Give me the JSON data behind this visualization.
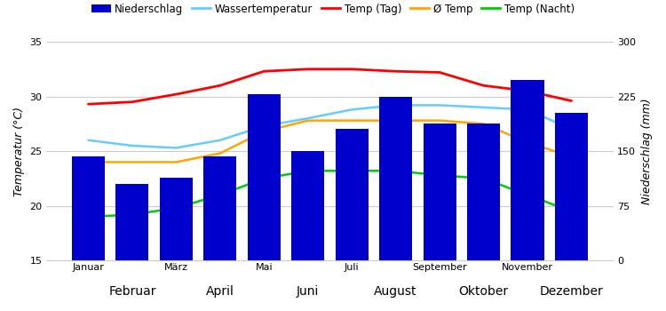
{
  "months": [
    "Januar",
    "Februar",
    "März",
    "April",
    "Mai",
    "Juni",
    "Juli",
    "August",
    "September",
    "Oktober",
    "November",
    "Dezember"
  ],
  "niederschlag_mm": [
    143,
    105,
    113,
    143,
    228,
    150,
    180,
    225,
    188,
    188,
    248,
    203
  ],
  "wassertemperatur": [
    26.0,
    25.5,
    25.3,
    26.0,
    27.3,
    28.0,
    28.8,
    29.2,
    29.2,
    29.0,
    28.8,
    27.0
  ],
  "temp_tag": [
    29.3,
    29.5,
    30.2,
    31.0,
    32.3,
    32.5,
    32.5,
    32.3,
    32.2,
    31.0,
    30.5,
    29.6
  ],
  "avg_temp": [
    24.0,
    24.0,
    24.0,
    24.8,
    26.8,
    27.8,
    27.8,
    27.8,
    27.8,
    27.5,
    25.8,
    24.5
  ],
  "temp_nacht": [
    19.0,
    19.2,
    19.8,
    21.0,
    22.5,
    23.2,
    23.2,
    23.2,
    22.8,
    22.5,
    21.0,
    19.5
  ],
  "bar_color": "#0000CC",
  "wasser_color": "#66CCFF",
  "tag_color": "#FF0000",
  "avg_color": "#FFA500",
  "nacht_color": "#00CC00",
  "ylabel_left": "Temperatur (°C)",
  "ylabel_right": "Niederschlag (mm)",
  "ylim_left": [
    15,
    35
  ],
  "ylim_right": [
    0,
    300
  ],
  "yticks_left": [
    15,
    20,
    25,
    30,
    35
  ],
  "yticks_right": [
    0,
    75,
    150,
    225,
    300
  ],
  "legend_labels": [
    "Niederschlag",
    "Wassertemperatur",
    "Temp (Tag)",
    "Ø Temp",
    "Temp (Nacht)"
  ],
  "background_color": "#ffffff",
  "grid_color": "#cccccc"
}
